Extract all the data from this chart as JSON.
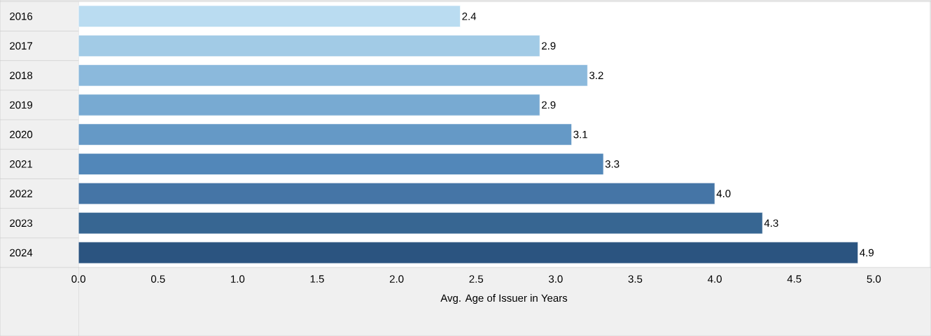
{
  "chart_data": {
    "type": "bar",
    "orientation": "horizontal",
    "xlabel": "Avg. Age of Issuer in Years",
    "categories": [
      "2016",
      "2017",
      "2018",
      "2019",
      "2020",
      "2021",
      "2022",
      "2023",
      "2024"
    ],
    "values": [
      2.4,
      2.9,
      3.2,
      2.9,
      3.1,
      3.3,
      4.0,
      4.3,
      4.9
    ],
    "value_labels": [
      "2.4",
      "2.9",
      "3.2",
      "2.9",
      "3.1",
      "3.3",
      "4.0",
      "4.3",
      "4.9"
    ],
    "colors": [
      "#badcf1",
      "#a2cbe6",
      "#8bb9dc",
      "#78aad2",
      "#6599c6",
      "#5287b9",
      "#4575a6",
      "#376692",
      "#2b5480"
    ],
    "xlim": [
      0,
      5.35
    ],
    "xticks": [
      {
        "value": 0,
        "label": "0.0"
      },
      0.5,
      {
        "value": 1,
        "label": "1.0"
      },
      1.5,
      {
        "value": 2,
        "label": "2.0"
      },
      2.5,
      {
        "value": 3,
        "label": "3.0"
      },
      3.5,
      {
        "value": 4,
        "label": "4.0"
      },
      4.5,
      {
        "value": 5,
        "label": "5.0"
      }
    ],
    "grid": false
  }
}
